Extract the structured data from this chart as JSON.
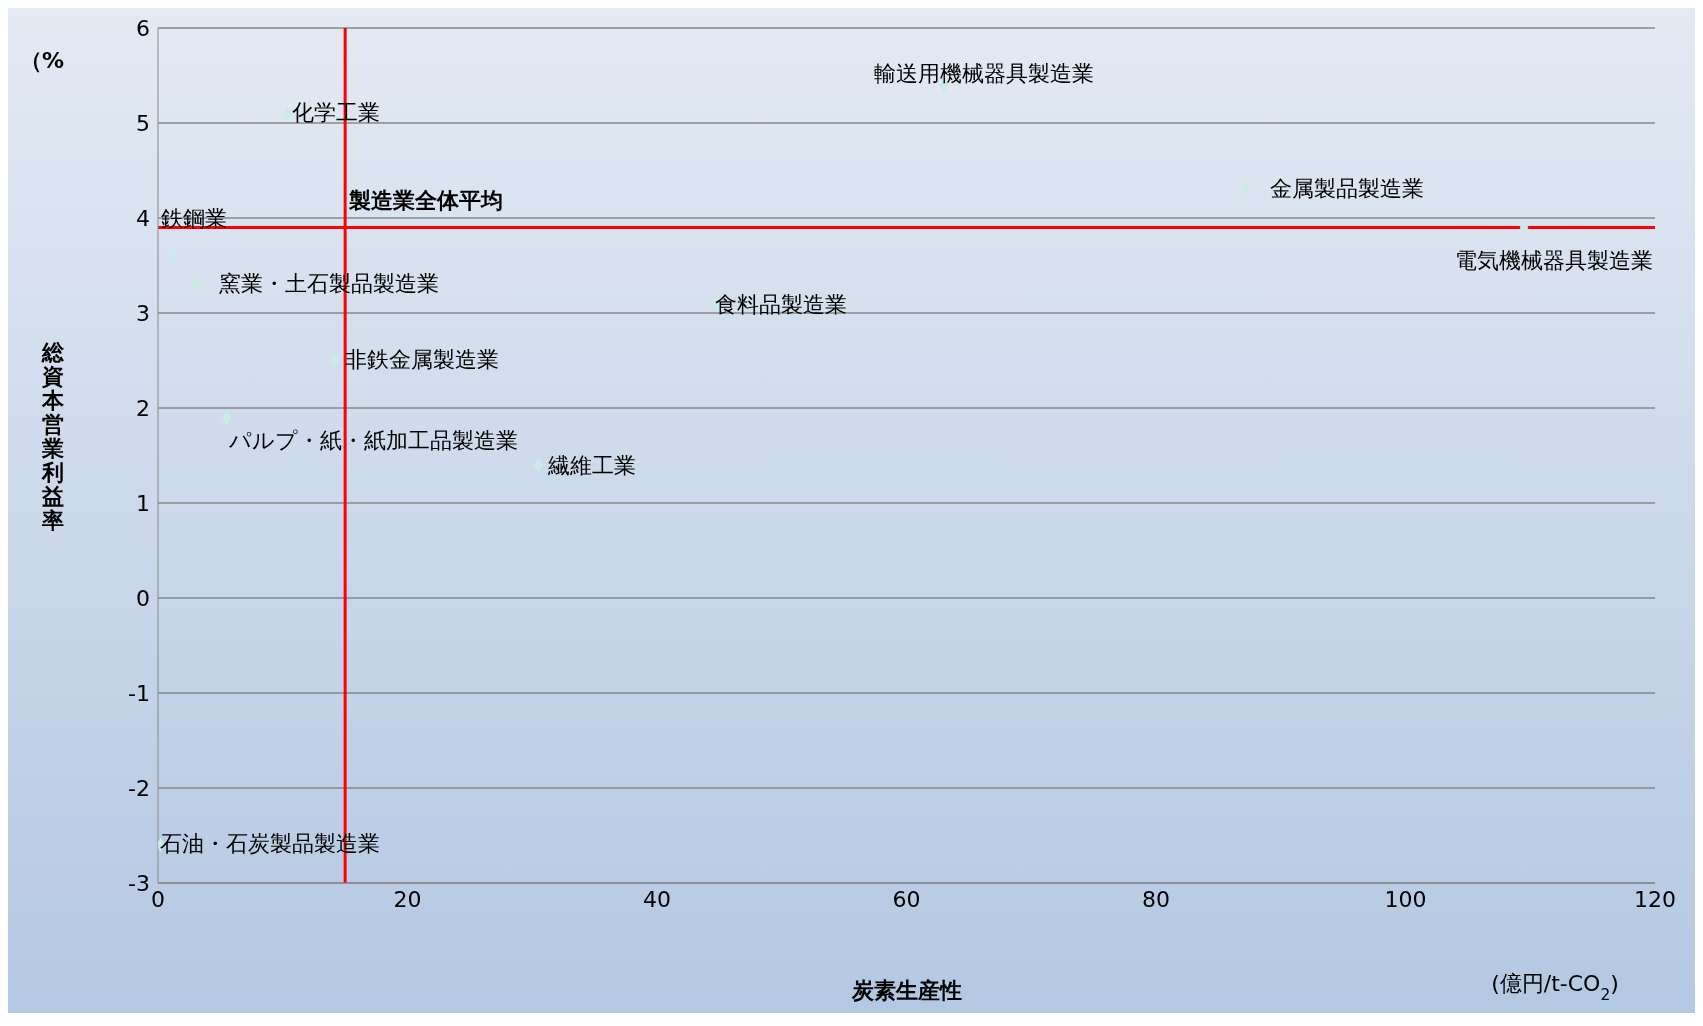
{
  "chart_data": {
    "type": "scatter",
    "xlabel": "炭素生産性",
    "ylabel": "総資本営業利益率",
    "x": [
      1.2,
      3.1,
      10.4,
      14.2,
      5.5,
      30.5,
      44.8,
      63,
      87.2,
      109.5,
      0.2
    ],
    "series": [
      {
        "color": "#c8ece6",
        "values": [
          3.6,
          3.3,
          5.1,
          2.5,
          1.9,
          1.4,
          3.1,
          5.4,
          4.3,
          3.9,
          -2.6
        ]
      }
    ],
    "xlim": [
      0,
      120
    ],
    "xticks": [
      0,
      20,
      40,
      60,
      80,
      100,
      120
    ],
    "ylim": [
      -3,
      6
    ],
    "yticks": [
      -3,
      -2,
      -1,
      0,
      1,
      2,
      3,
      4,
      5,
      6
    ],
    "grid": "y",
    "marker": "diamond",
    "legend": false,
    "ref_lines": [
      {
        "axis": "x",
        "value": 15,
        "color": "#ff0000"
      },
      {
        "axis": "y",
        "value": 3.9,
        "color": "#ff0000"
      }
    ],
    "annotations": [
      {
        "text": "鉄鋼業",
        "x": 1.2,
        "y": 3.6
      },
      {
        "text": "窯業・土石製品製造業",
        "x": 3.1,
        "y": 3.3
      },
      {
        "text": "化学工業",
        "x": 10.4,
        "y": 5.1
      },
      {
        "text": "非鉄金属製造業",
        "x": 14.2,
        "y": 2.5
      },
      {
        "text": "パルプ・紙・紙加工品製造業",
        "x": 5.5,
        "y": 1.9
      },
      {
        "text": "繊維工業",
        "x": 30.5,
        "y": 1.4
      },
      {
        "text": "食料品製造業",
        "x": 44.8,
        "y": 3.1
      },
      {
        "text": "輸送用機械器具製造業",
        "x": 63,
        "y": 5.4
      },
      {
        "text": "金属製品製造業",
        "x": 87.2,
        "y": 4.3
      },
      {
        "text": "電気機械器具製造業",
        "x": 109.5,
        "y": 3.9
      },
      {
        "text": "石油・石炭製品製造業",
        "x": 0.2,
        "y": -2.6
      },
      {
        "text": "製造業全体平均",
        "x": 15,
        "y": 3.9
      },
      "（%",
      "(億円/t-CO$_{2}$)"
    ]
  }
}
